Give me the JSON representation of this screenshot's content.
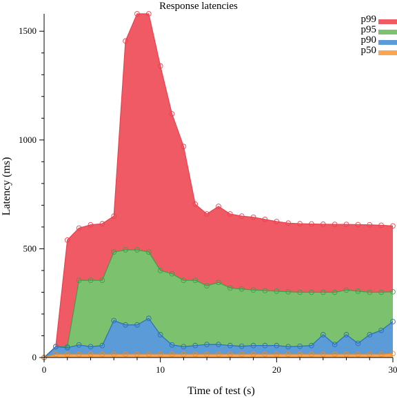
{
  "chart_data": {
    "type": "area",
    "title": "Response latencies",
    "xlabel": "Time of test (s)",
    "ylabel": "Latency (ms)",
    "xlim": [
      0,
      30
    ],
    "ylim": [
      0,
      1580
    ],
    "x_ticks": [
      0,
      10,
      20,
      30
    ],
    "y_ticks": [
      0,
      500,
      1000,
      1500
    ],
    "grid": false,
    "legend_position": "top-right",
    "x": [
      0,
      1,
      2,
      3,
      4,
      5,
      6,
      7,
      8,
      9,
      10,
      11,
      12,
      13,
      14,
      15,
      16,
      17,
      18,
      19,
      20,
      21,
      22,
      23,
      24,
      25,
      26,
      27,
      28,
      29,
      30
    ],
    "series": [
      {
        "name": "p99",
        "fill": "#f05a64",
        "line": "#e8414e",
        "values": [
          0,
          50,
          540,
          595,
          610,
          615,
          650,
          1455,
          1580,
          1580,
          1340,
          1120,
          970,
          705,
          660,
          695,
          660,
          650,
          645,
          635,
          625,
          618,
          615,
          614,
          613,
          612,
          612,
          611,
          610,
          608,
          605
        ]
      },
      {
        "name": "p95",
        "fill": "#7cc26e",
        "line": "#3aa046",
        "values": [
          0,
          50,
          50,
          355,
          355,
          355,
          485,
          495,
          495,
          485,
          400,
          385,
          355,
          355,
          330,
          345,
          320,
          315,
          310,
          308,
          305,
          302,
          300,
          300,
          300,
          300,
          310,
          305,
          300,
          300,
          302
        ]
      },
      {
        "name": "p90",
        "fill": "#5a9bd8",
        "line": "#2a6fb5",
        "values": [
          0,
          50,
          45,
          58,
          50,
          55,
          170,
          150,
          150,
          180,
          105,
          58,
          50,
          55,
          60,
          60,
          55,
          52,
          55,
          55,
          55,
          50,
          52,
          55,
          105,
          60,
          105,
          65,
          105,
          125,
          165
        ]
      },
      {
        "name": "p50",
        "fill": "#f9a552",
        "line": "#f08a24",
        "values": [
          0,
          15,
          15,
          15,
          15,
          15,
          15,
          15,
          15,
          15,
          15,
          15,
          15,
          15,
          15,
          15,
          15,
          15,
          15,
          15,
          15,
          15,
          15,
          15,
          15,
          15,
          15,
          15,
          15,
          15,
          18
        ]
      }
    ]
  }
}
